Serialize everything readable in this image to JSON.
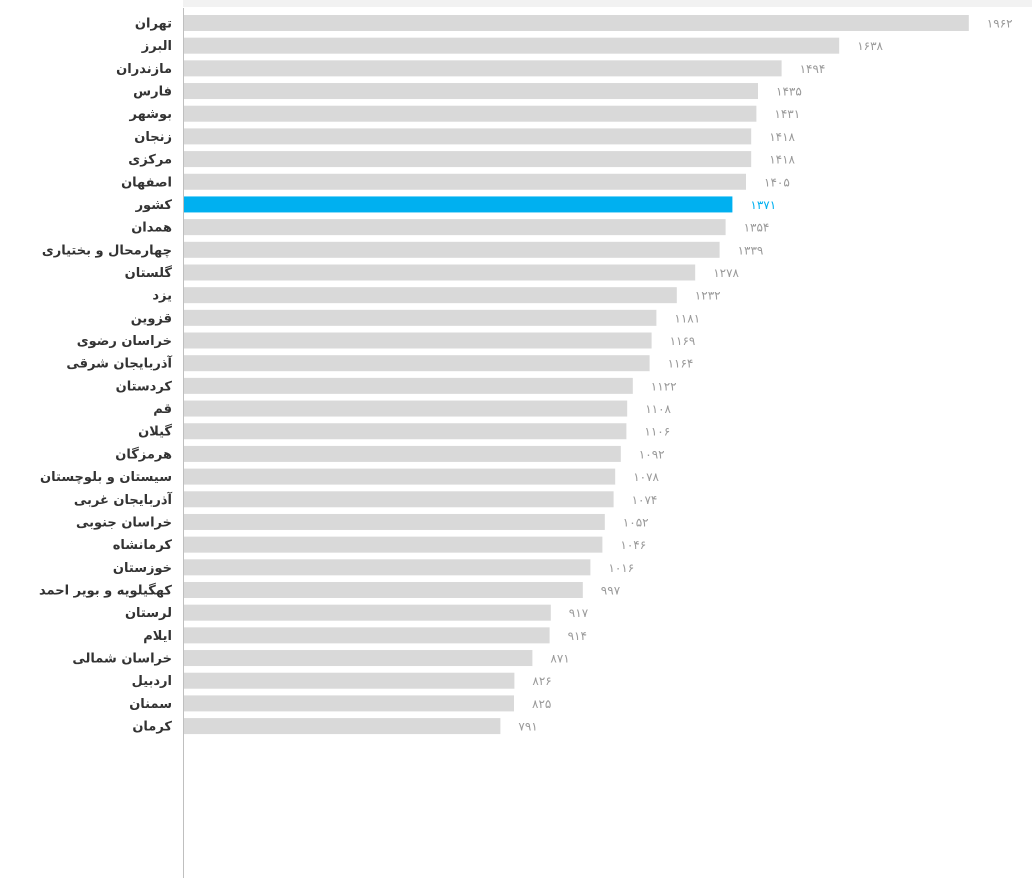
{
  "chart_data": {
    "type": "hbar",
    "categories": [
      "تهران",
      "البرز",
      "مازندران",
      "فارس",
      "بوشهر",
      "زنجان",
      "مرکزی",
      "اصفهان",
      "کشور",
      "همدان",
      "چهارمحال و بختیاری",
      "گلستان",
      "یزد",
      "قزوین",
      "خراسان رضوی",
      "آذربایجان شرقی",
      "کردستان",
      "قم",
      "گیلان",
      "هرمزگان",
      "سیستان و بلوچستان",
      "آذربایجان غربی",
      "خراسان جنوبی",
      "کرمانشاه",
      "خوزستان",
      "کهگیلویه و بویر احمد",
      "لرستان",
      "ایلام",
      "خراسان شمالی",
      "اردبیل",
      "سمنان",
      "کرمان"
    ],
    "values": [
      1962,
      1638,
      1494,
      1435,
      1431,
      1418,
      1418,
      1405,
      1371,
      1354,
      1339,
      1278,
      1232,
      1181,
      1169,
      1164,
      1122,
      1108,
      1106,
      1092,
      1078,
      1074,
      1052,
      1046,
      1016,
      997,
      917,
      914,
      871,
      826,
      825,
      791
    ],
    "value_labels": [
      "۱۹۶۲",
      "۱۶۳۸",
      "۱۴۹۴",
      "۱۴۳۵",
      "۱۴۳۱",
      "۱۴۱۸",
      "۱۴۱۸",
      "۱۴۰۵",
      "۱۳۷۱",
      "۱۳۵۴",
      "۱۳۳۹",
      "۱۲۷۸",
      "۱۲۳۲",
      "۱۱۸۱",
      "۱۱۶۹",
      "۱۱۶۴",
      "۱۱۲۲",
      "۱۱۰۸",
      "۱۱۰۶",
      "۱۰۹۲",
      "۱۰۷۸",
      "۱۰۷۴",
      "۱۰۵۲",
      "۱۰۴۶",
      "۱۰۱۶",
      "۹۹۷",
      "۹۱۷",
      "۹۱۴",
      "۸۷۱",
      "۸۲۶",
      "۸۲۵",
      "۷۹۱"
    ],
    "colors": [
      "#d9d9d9",
      "#d9d9d9",
      "#d9d9d9",
      "#d9d9d9",
      "#d9d9d9",
      "#d9d9d9",
      "#d9d9d9",
      "#d9d9d9",
      "#00b0f0",
      "#d9d9d9",
      "#d9d9d9",
      "#d9d9d9",
      "#d9d9d9",
      "#d9d9d9",
      "#d9d9d9",
      "#d9d9d9",
      "#d9d9d9",
      "#d9d9d9",
      "#d9d9d9",
      "#d9d9d9",
      "#d9d9d9",
      "#d9d9d9",
      "#d9d9d9",
      "#d9d9d9",
      "#d9d9d9",
      "#d9d9d9",
      "#d9d9d9",
      "#d9d9d9",
      "#d9d9d9",
      "#d9d9d9",
      "#d9d9d9",
      "#d9d9d9"
    ],
    "xlim": [
      0,
      2000
    ]
  }
}
